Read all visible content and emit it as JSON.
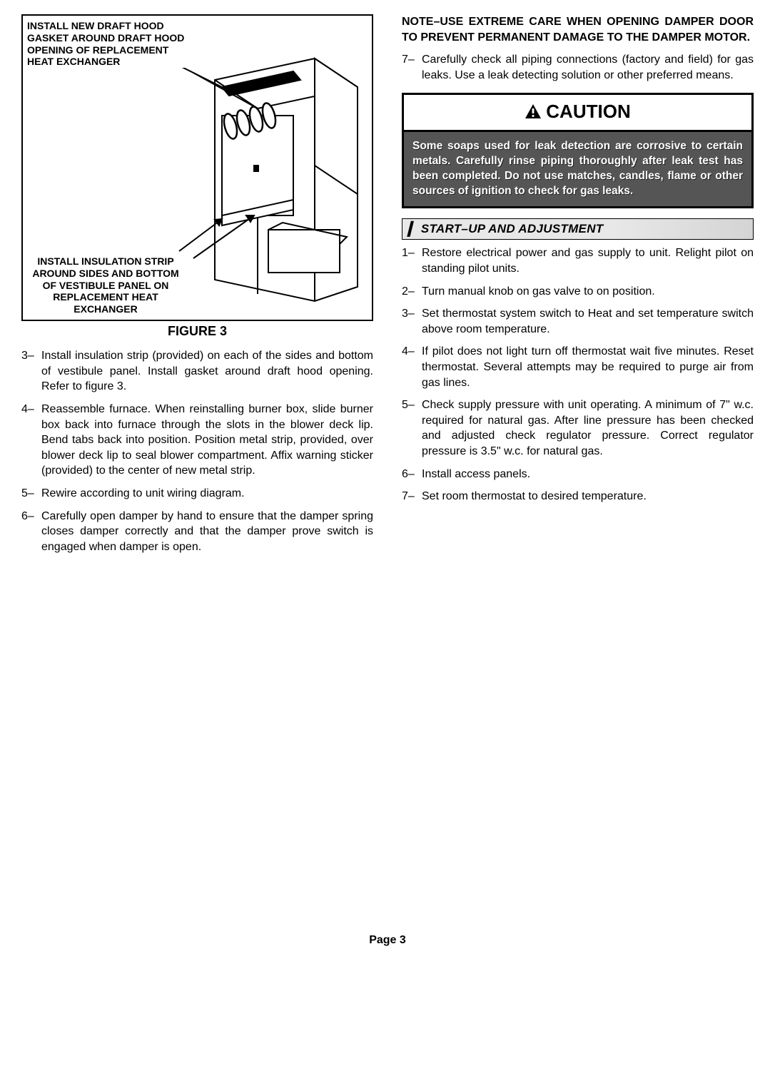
{
  "figure": {
    "caption": "FIGURE 3",
    "callout_top": "INSTALL NEW DRAFT HOOD GASKET AROUND DRAFT HOOD OPENING OF REPLACEMENT HEAT EXCHANGER",
    "callout_bottom": "INSTALL INSULATION STRIP AROUND SIDES AND BOTTOM OF VESTIBULE PANEL ON REPLACEMENT HEAT EXCHANGER"
  },
  "left_steps": [
    {
      "num": "3–",
      "text": "Install insulation strip (provided) on each of the sides and bottom of vestibule panel. Install gasket around draft hood opening. Refer to figure 3."
    },
    {
      "num": "4–",
      "text": "Reassemble furnace. When reinstalling burner box, slide burner box back into furnace through the slots in the blower deck lip. Bend tabs back into position. Position metal strip, provided, over blower deck lip to seal blower compartment. Affix warning sticker (provided) to the center of new metal strip."
    },
    {
      "num": "5–",
      "text": "Rewire according to unit wiring diagram."
    },
    {
      "num": "6–",
      "text": "Carefully open damper by hand to ensure that the damper spring closes damper correctly and that the damper prove switch is engaged when damper is open."
    }
  ],
  "right": {
    "note": "NOTE–USE EXTREME CARE WHEN OPENING DAMPER DOOR TO PREVENT PERMANENT DAMAGE TO THE DAMPER MOTOR.",
    "step7": {
      "num": "7–",
      "text": "Carefully check all piping connections (factory and field) for gas leaks. Use a leak detecting solution or other preferred means."
    },
    "caution_label": "CAUTION",
    "caution_body": "Some soaps used for leak detection are corrosive to certain metals. Carefully rinse piping thoroughly after leak test has been completed. Do not use matches, candles, flame or other sources of ignition to check for gas leaks.",
    "section_title": "START–UP AND ADJUSTMENT",
    "startup_steps": [
      {
        "num": "1–",
        "text": "Restore electrical power and gas supply to unit. Relight pilot on standing pilot units."
      },
      {
        "num": "2–",
        "text": "Turn manual knob on gas valve to on position."
      },
      {
        "num": "3–",
        "text": "Set thermostat system switch to Heat and set temperature switch above room temperature."
      },
      {
        "num": "4–",
        "text": "If pilot does not light turn off thermostat wait five minutes. Reset thermostat. Several attempts may be required to purge air from gas lines."
      },
      {
        "num": "5–",
        "text": "Check supply pressure with unit operating. A minimum of 7\" w.c. required for natural gas. After line pressure has been checked and adjusted check regulator pressure. Correct regulator pressure is 3.5\" w.c. for natural gas."
      },
      {
        "num": "6–",
        "text": "Install access panels."
      },
      {
        "num": "7–",
        "text": "Set room thermostat to desired temperature."
      }
    ]
  },
  "page_number": "Page 3"
}
